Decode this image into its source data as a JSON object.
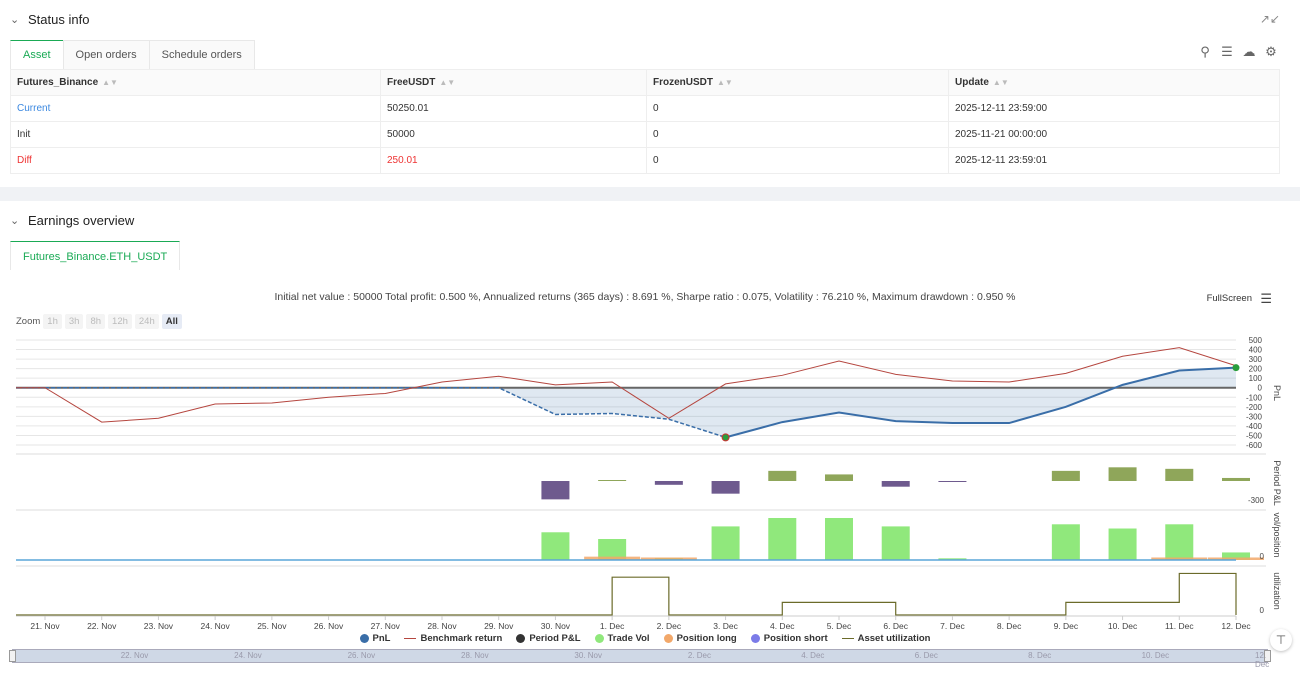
{
  "status": {
    "title": "Status info",
    "tabs": [
      "Asset",
      "Open orders",
      "Schedule orders"
    ],
    "columns": [
      "Futures_Binance",
      "FreeUSDT",
      "FrozenUSDT",
      "Update"
    ],
    "rows": [
      {
        "label": "Current",
        "free": "50250.01",
        "frozen": "0",
        "update": "2025-12-11 23:59:00"
      },
      {
        "label": "Init",
        "free": "50000",
        "frozen": "0",
        "update": "2025-11-21 00:00:00"
      },
      {
        "label": "Diff",
        "free": "250.01",
        "frozen": "0",
        "update": "2025-12-11 23:59:01"
      }
    ]
  },
  "earnings": {
    "title": "Earnings overview",
    "tab": "Futures_Binance.ETH_USDT",
    "summary": "Initial net value : 50000 Total profit: 0.500 %, Annualized returns (365 days) : 8.691 %, Sharpe ratio : 0.075, Volatility : 76.210 %, Maximum drawdown : 0.950 %",
    "fullscreen": "FullScreen",
    "zoom_label": "Zoom",
    "zoom_buttons": [
      "1h",
      "3h",
      "8h",
      "12h",
      "24h",
      "All"
    ],
    "legend": [
      "PnL",
      "Benchmark return",
      "Period P&L",
      "Trade Vol",
      "Position long",
      "Position short",
      "Asset utilization"
    ],
    "colors": {
      "pnl": "#3a6ea8",
      "benchmark": "#b5463f",
      "period_pos": "#8fa65a",
      "period_neg": "#6e5a8e",
      "trade_vol": "#90e87c",
      "pos_long": "#f2a86a",
      "pos_short": "#7b7be8",
      "utilization": "#6b6b2a"
    }
  },
  "chart_data": {
    "type": "line",
    "x": [
      "21. Nov",
      "22. Nov",
      "23. Nov",
      "24. Nov",
      "25. Nov",
      "26. Nov",
      "27. Nov",
      "28. Nov",
      "29. Nov",
      "30. Nov",
      "1. Dec",
      "2. Dec",
      "3. Dec",
      "4. Dec",
      "5. Dec",
      "6. Dec",
      "7. Dec",
      "8. Dec",
      "9. Dec",
      "10. Dec",
      "11. Dec",
      "12. Dec"
    ],
    "pnl_axis_ticks": [
      500,
      400,
      300,
      200,
      100,
      0,
      -100,
      -200,
      -300,
      -400,
      -500,
      -600
    ],
    "pnl_ylabel": "PnL",
    "period_ylabel": "Period P&L",
    "period_tick": "-300",
    "vol_ylabel": "vol/position",
    "vol_tick": "0",
    "util_ylabel": "utilization",
    "util_tick": "0",
    "series": [
      {
        "name": "PnL",
        "values": [
          0,
          0,
          0,
          0,
          0,
          0,
          0,
          0,
          0,
          -280,
          -270,
          -330,
          -520,
          -360,
          -260,
          -350,
          -370,
          -370,
          -200,
          30,
          180,
          210
        ]
      },
      {
        "name": "Benchmark return",
        "values": [
          0,
          -360,
          -320,
          -170,
          -160,
          -100,
          -60,
          60,
          120,
          30,
          60,
          -320,
          40,
          130,
          280,
          140,
          70,
          60,
          150,
          330,
          420,
          230
        ]
      },
      {
        "name": "Period P&L",
        "values": [
          0,
          0,
          0,
          0,
          0,
          0,
          0,
          0,
          0,
          -290,
          5,
          -60,
          -200,
          200,
          130,
          -90,
          -10,
          0,
          200,
          270,
          240,
          60
        ]
      },
      {
        "name": "Trade Vol",
        "values": [
          0,
          0,
          0,
          0,
          0,
          0,
          0,
          0,
          0,
          0.66,
          0.5,
          0.05,
          0.8,
          1.0,
          1.0,
          0.8,
          0.04,
          0,
          0.85,
          0.75,
          0.85,
          0.18
        ]
      },
      {
        "name": "Position long",
        "values": [
          0,
          0,
          0,
          0,
          0,
          0,
          0,
          0,
          0,
          0,
          0.08,
          0.06,
          0,
          0,
          0,
          0,
          0,
          0,
          0,
          0,
          0.06,
          0.06
        ]
      },
      {
        "name": "Asset utilization",
        "values": [
          0,
          0,
          0,
          0,
          0,
          0,
          0,
          0,
          0,
          0,
          0.9,
          0,
          0,
          0.3,
          0.3,
          0,
          0,
          0,
          0.3,
          0.3,
          0.99,
          0
        ]
      }
    ]
  }
}
